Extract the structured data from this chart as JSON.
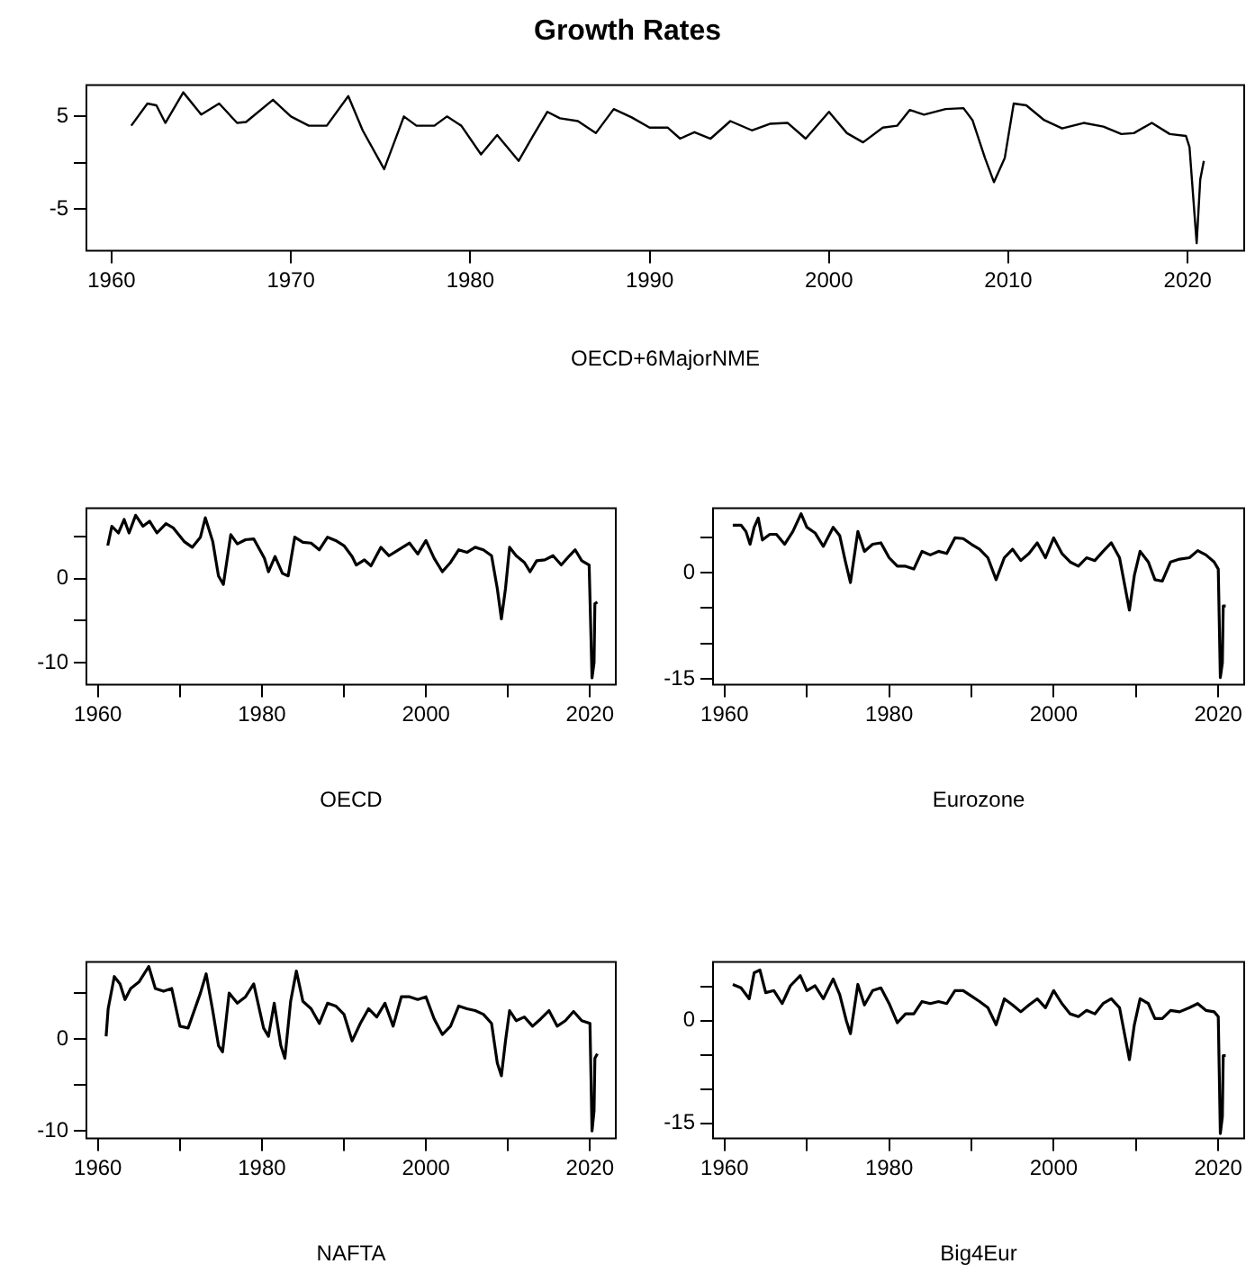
{
  "chart_data": [
    {
      "type": "line",
      "title": "Growth Rates",
      "xlabel": "OECD+6MajorNME",
      "color": "#000000",
      "grid": false,
      "legend": false,
      "marker": "none",
      "line_style": "solid",
      "xlim": [
        1958.6,
        2023.15
      ],
      "xticks": [
        1960,
        1970,
        1980,
        1990,
        2000,
        2010,
        2020
      ],
      "ylim": [
        -9.5,
        8.4
      ],
      "yticks": [
        -5,
        {
          "value": 0,
          "label": null
        },
        5
      ],
      "x": [
        1961.1,
        1962,
        1962.5,
        1963,
        1964,
        1965,
        1966,
        1967,
        1967.5,
        1969,
        1970,
        1971,
        1972,
        1973.2,
        1974,
        1975.2,
        1976.3,
        1977,
        1978,
        1978.7,
        1979.5,
        1980.6,
        1981.5,
        1982.7,
        1983.5,
        1984.3,
        1985,
        1986,
        1987,
        1988,
        1989,
        1990,
        1991,
        1991.7,
        1992.5,
        1993.4,
        1994.5,
        1995.7,
        1996.7,
        1997.7,
        1998.7,
        2000,
        2001,
        2001.9,
        2003,
        2003.8,
        2004.5,
        2005.3,
        2006.5,
        2007.5,
        2008,
        2008.7,
        2009.2,
        2009.8,
        2010.3,
        2011,
        2012,
        2013,
        2014.2,
        2015.3,
        2016.3,
        2017,
        2018,
        2019,
        2019.9,
        2020.1,
        2020.5,
        2020.7,
        2020.9
      ],
      "values": [
        4.0,
        6.4,
        6.2,
        4.3,
        7.6,
        5.2,
        6.4,
        4.3,
        4.4,
        6.8,
        5.0,
        4.0,
        4.0,
        7.2,
        3.5,
        -0.7,
        5.0,
        4.0,
        4.0,
        5.0,
        4.0,
        0.9,
        3.0,
        0.2,
        2.9,
        5.5,
        4.8,
        4.5,
        3.2,
        5.8,
        4.9,
        3.8,
        3.8,
        2.6,
        3.3,
        2.6,
        4.5,
        3.5,
        4.2,
        4.3,
        2.6,
        5.5,
        3.2,
        2.2,
        3.8,
        4.0,
        5.7,
        5.2,
        5.8,
        5.9,
        4.6,
        0.5,
        -2.1,
        0.5,
        6.4,
        6.2,
        4.6,
        3.7,
        4.3,
        3.9,
        3.1,
        3.2,
        4.3,
        3.1,
        2.9,
        1.7,
        -8.7,
        -1.8,
        0.2
      ]
    },
    {
      "type": "line",
      "xlabel": "OECD",
      "color": "#000000",
      "grid": false,
      "legend": false,
      "marker": "none",
      "line_style": "solid",
      "xlim": [
        1958.6,
        2023.15
      ],
      "xticks": [
        1960,
        {
          "value": 1970,
          "label": null
        },
        1980,
        {
          "value": 1990,
          "label": null
        },
        2000,
        {
          "value": 2010,
          "label": null
        },
        2020
      ],
      "ylim": [
        -12.6,
        8.35
      ],
      "yticks": [
        -10,
        {
          "value": -5,
          "label": null
        },
        0,
        {
          "value": 5,
          "label": null
        }
      ],
      "x": [
        1961.2,
        1961.7,
        1962.5,
        1963.2,
        1963.8,
        1964.6,
        1965.5,
        1966.3,
        1967.2,
        1968.3,
        1969.2,
        1970.5,
        1971.5,
        1972.5,
        1973.1,
        1974,
        1974.7,
        1975.3,
        1976.2,
        1977,
        1978,
        1979,
        1980.3,
        1980.8,
        1981.6,
        1982.5,
        1983.2,
        1984,
        1985,
        1986,
        1987,
        1988,
        1989,
        1990,
        1991,
        1991.5,
        1992.5,
        1993.3,
        1994.5,
        1995.5,
        1996.5,
        1998,
        1999,
        2000,
        2001,
        2002,
        2003,
        2004,
        2005,
        2006,
        2007,
        2008,
        2008.7,
        2009.2,
        2009.7,
        2010.2,
        2011,
        2012,
        2012.7,
        2013.5,
        2014.5,
        2015.5,
        2016.5,
        2017.5,
        2018.2,
        2019,
        2019.9,
        2020.25,
        2020.5,
        2020.6,
        2020.9
      ],
      "values": [
        3.9,
        6.2,
        5.4,
        7.0,
        5.4,
        7.5,
        6.2,
        6.8,
        5.4,
        6.5,
        6.0,
        4.4,
        3.7,
        4.9,
        7.2,
        4.4,
        0.3,
        -0.7,
        5.2,
        4.1,
        4.6,
        4.7,
        2.4,
        0.8,
        2.6,
        0.6,
        0.3,
        4.9,
        4.3,
        4.2,
        3.4,
        4.9,
        4.5,
        3.9,
        2.6,
        1.6,
        2.2,
        1.5,
        3.7,
        2.7,
        3.3,
        4.2,
        2.9,
        4.5,
        2.4,
        0.8,
        1.9,
        3.4,
        3.1,
        3.7,
        3.4,
        2.7,
        -1.2,
        -4.8,
        -1.2,
        3.7,
        2.7,
        1.9,
        0.8,
        2.1,
        2.2,
        2.7,
        1.6,
        2.7,
        3.4,
        2.1,
        1.6,
        -11.8,
        -10.0,
        -3.0,
        -2.8
      ]
    },
    {
      "type": "line",
      "xlabel": "Eurozone",
      "color": "#000000",
      "grid": false,
      "legend": false,
      "marker": "none",
      "line_style": "solid",
      "xlim": [
        1958.6,
        2023.15
      ],
      "xticks": [
        1960,
        {
          "value": 1970,
          "label": null
        },
        1980,
        {
          "value": 1990,
          "label": null
        },
        2000,
        {
          "value": 2010,
          "label": null
        },
        2020
      ],
      "ylim": [
        -15.8,
        9.1
      ],
      "yticks": [
        -15,
        {
          "value": -10,
          "label": null
        },
        {
          "value": -5,
          "label": null
        },
        0,
        {
          "value": 5,
          "label": null
        }
      ],
      "x": [
        1961,
        1962,
        1962.6,
        1963.1,
        1963.6,
        1964.1,
        1964.6,
        1965.5,
        1966.3,
        1967.3,
        1968.3,
        1969.3,
        1970,
        1971,
        1972,
        1973.2,
        1974,
        1974.7,
        1975.3,
        1976.2,
        1977,
        1978,
        1979,
        1980,
        1981,
        1982,
        1983,
        1984,
        1985,
        1986,
        1987,
        1988,
        1989,
        1990,
        1991,
        1992,
        1993,
        1994,
        1995,
        1996,
        1997,
        1998,
        1999,
        2000,
        2001,
        2002,
        2003,
        2004,
        2005,
        2006,
        2007,
        2008,
        2008.7,
        2009.2,
        2009.8,
        2010.5,
        2011.5,
        2012.3,
        2013.2,
        2014.2,
        2015.3,
        2016.5,
        2017.5,
        2018.5,
        2019.5,
        2020,
        2020.25,
        2020.5,
        2020.6,
        2020.9
      ],
      "values": [
        6.7,
        6.7,
        5.8,
        4.0,
        6.4,
        7.7,
        4.6,
        5.4,
        5.4,
        4.0,
        5.8,
        8.3,
        6.4,
        5.6,
        3.7,
        6.4,
        5.2,
        1.5,
        -1.4,
        5.8,
        3.0,
        4.0,
        4.2,
        2.1,
        0.9,
        0.9,
        0.5,
        3.0,
        2.5,
        3.0,
        2.7,
        4.9,
        4.8,
        4.0,
        3.3,
        2.1,
        -1.0,
        2.1,
        3.3,
        1.7,
        2.7,
        4.2,
        2.1,
        4.9,
        2.7,
        1.5,
        0.9,
        2.1,
        1.7,
        3.0,
        4.2,
        2.1,
        -2.2,
        -5.3,
        -0.4,
        3.0,
        1.5,
        -1.0,
        -1.2,
        1.5,
        1.9,
        2.1,
        3.1,
        2.5,
        1.5,
        0.5,
        -14.8,
        -12.7,
        -4.7,
        -4.7
      ]
    },
    {
      "type": "line",
      "xlabel": "NAFTA",
      "color": "#000000",
      "grid": false,
      "legend": false,
      "marker": "none",
      "line_style": "solid",
      "xlim": [
        1958.6,
        2023.15
      ],
      "xticks": [
        1960,
        {
          "value": 1970,
          "label": null
        },
        1980,
        {
          "value": 1990,
          "label": null
        },
        2000,
        {
          "value": 2010,
          "label": null
        },
        2020
      ],
      "ylim": [
        -10.8,
        8.4
      ],
      "yticks": [
        -10,
        {
          "value": -5,
          "label": null
        },
        0,
        {
          "value": 5,
          "label": null
        }
      ],
      "x": [
        1961,
        1961.25,
        1962,
        1962.7,
        1963.3,
        1964,
        1965,
        1966.2,
        1967,
        1968,
        1969,
        1970,
        1971,
        1972.5,
        1973.2,
        1974,
        1974.7,
        1975.2,
        1976,
        1977,
        1978,
        1979,
        1980.2,
        1980.8,
        1981.5,
        1982.3,
        1982.8,
        1983.5,
        1984.2,
        1985,
        1986,
        1987,
        1988,
        1989,
        1990,
        1991,
        1992,
        1993,
        1994,
        1995,
        1996,
        1997,
        1998,
        1999,
        2000,
        2001,
        2002,
        2003,
        2004,
        2005,
        2006,
        2007,
        2008,
        2008.7,
        2009.2,
        2009.7,
        2010.2,
        2011,
        2012,
        2013,
        2014,
        2015,
        2016,
        2017,
        2018,
        2019,
        2020,
        2020.25,
        2020.5,
        2020.6,
        2020.9
      ],
      "values": [
        0.3,
        3.3,
        6.8,
        6.0,
        4.3,
        5.5,
        6.2,
        7.9,
        5.5,
        5.2,
        5.5,
        1.4,
        1.2,
        5.0,
        7.1,
        3.1,
        -0.7,
        -1.4,
        5.0,
        3.9,
        4.6,
        6.0,
        1.2,
        0.3,
        3.9,
        -0.7,
        -2.1,
        4.1,
        7.4,
        4.1,
        3.3,
        1.7,
        3.9,
        3.6,
        2.7,
        -0.2,
        1.7,
        3.3,
        2.4,
        3.9,
        1.4,
        4.6,
        4.6,
        4.3,
        4.6,
        2.2,
        0.5,
        1.4,
        3.6,
        3.3,
        3.1,
        2.7,
        1.7,
        -2.6,
        -4.0,
        -0.2,
        3.1,
        2.0,
        2.4,
        1.4,
        2.2,
        3.1,
        1.4,
        2.0,
        3.0,
        2.0,
        1.7,
        -10.0,
        -7.8,
        -2.1,
        -1.6
      ]
    },
    {
      "type": "line",
      "xlabel": "Big4Eur",
      "color": "#000000",
      "grid": false,
      "legend": false,
      "marker": "none",
      "line_style": "solid",
      "xlim": [
        1958.6,
        2023.15
      ],
      "xticks": [
        1960,
        {
          "value": 1970,
          "label": null
        },
        1980,
        {
          "value": 1990,
          "label": null
        },
        2000,
        {
          "value": 2010,
          "label": null
        },
        2020
      ],
      "ylim": [
        -17.2,
        8.6
      ],
      "yticks": [
        -15,
        {
          "value": -10,
          "label": null
        },
        {
          "value": -5,
          "label": null
        },
        0,
        {
          "value": 5,
          "label": null
        }
      ],
      "x": [
        1961,
        1962,
        1963,
        1963.6,
        1964.3,
        1965,
        1966,
        1967,
        1968,
        1969.2,
        1970,
        1971,
        1972,
        1973.2,
        1974,
        1974.8,
        1975.3,
        1976.2,
        1977,
        1978,
        1979,
        1980,
        1981,
        1982,
        1983,
        1984,
        1985,
        1986,
        1987,
        1988,
        1989,
        1990,
        1991,
        1992,
        1993,
        1994,
        1995,
        1996,
        1997,
        1998,
        1999,
        2000,
        2001,
        2002,
        2003,
        2004,
        2005,
        2006,
        2007,
        2008,
        2008.7,
        2009.2,
        2009.8,
        2010.5,
        2011.5,
        2012.3,
        2013.2,
        2014.2,
        2015.3,
        2016.5,
        2017.5,
        2018.5,
        2019.5,
        2020,
        2020.25,
        2020.5,
        2020.6,
        2020.9
      ],
      "values": [
        5.3,
        4.8,
        3.2,
        7.0,
        7.4,
        4.1,
        4.4,
        2.5,
        5.1,
        6.6,
        4.4,
        5.1,
        3.2,
        6.1,
        3.8,
        0,
        -1.9,
        5.3,
        2.3,
        4.4,
        4.8,
        2.5,
        -0.3,
        1.0,
        1.0,
        2.8,
        2.5,
        2.8,
        2.5,
        4.4,
        4.4,
        3.6,
        2.8,
        1.9,
        -0.6,
        3.2,
        2.3,
        1.3,
        2.3,
        3.2,
        1.9,
        4.4,
        2.5,
        1.0,
        0.6,
        1.5,
        1.0,
        2.5,
        3.2,
        1.9,
        -2.5,
        -5.7,
        -0.6,
        3.2,
        2.5,
        0.3,
        0.3,
        1.5,
        1.3,
        1.9,
        2.5,
        1.5,
        1.3,
        0.6,
        -16.5,
        -14.0,
        -5.1,
        -5.1
      ]
    }
  ]
}
